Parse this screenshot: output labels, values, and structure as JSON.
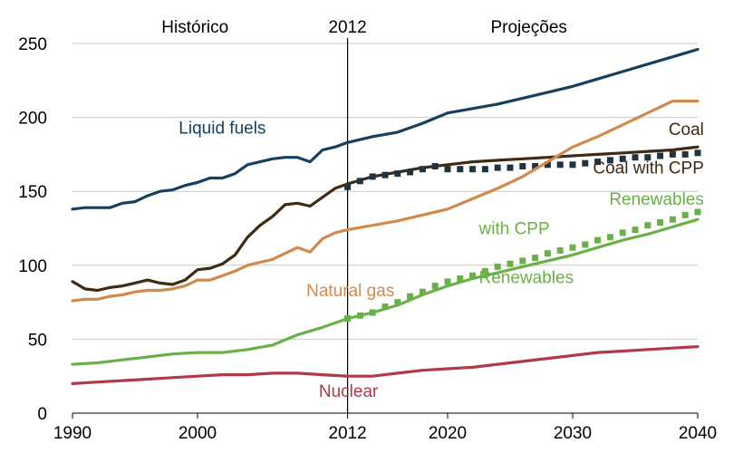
{
  "chart_data": {
    "type": "line",
    "title": "",
    "xlabel": "",
    "ylabel": "",
    "xlim": [
      1990,
      2040
    ],
    "ylim": [
      0,
      250
    ],
    "x_ticks": [
      1990,
      2000,
      2012,
      2020,
      2030,
      2040
    ],
    "y_ticks": [
      0,
      50,
      100,
      150,
      200,
      250
    ],
    "grid": "horizontal",
    "period_labels": {
      "historical": "Histórico",
      "split_year": "2012",
      "projections": "Projeções"
    },
    "split_x": 2012,
    "series": [
      {
        "name": "Liquid fuels",
        "style": "line",
        "color": "#17405e",
        "x": [
          1990,
          1991,
          1992,
          1993,
          1994,
          1995,
          1996,
          1997,
          1998,
          1999,
          2000,
          2001,
          2002,
          2003,
          2004,
          2005,
          2006,
          2007,
          2008,
          2009,
          2010,
          2011,
          2012,
          2014,
          2016,
          2018,
          2020,
          2022,
          2024,
          2026,
          2028,
          2030,
          2032,
          2034,
          2036,
          2038,
          2040
        ],
        "y": [
          138,
          139,
          139,
          139,
          142,
          143,
          147,
          150,
          151,
          154,
          156,
          159,
          159,
          162,
          168,
          170,
          172,
          173,
          173,
          170,
          178,
          180,
          183,
          187,
          190,
          196,
          203,
          206,
          209,
          213,
          217,
          221,
          226,
          231,
          236,
          241,
          246
        ]
      },
      {
        "name": "Coal",
        "style": "line",
        "color": "#3f2a14",
        "x": [
          1990,
          1991,
          1992,
          1993,
          1994,
          1995,
          1996,
          1997,
          1998,
          1999,
          2000,
          2001,
          2002,
          2003,
          2004,
          2005,
          2006,
          2007,
          2008,
          2009,
          2010,
          2011,
          2012,
          2014,
          2016,
          2018,
          2020,
          2022,
          2024,
          2026,
          2028,
          2030,
          2032,
          2034,
          2036,
          2038,
          2040
        ],
        "y": [
          89,
          84,
          83,
          85,
          86,
          88,
          90,
          88,
          87,
          90,
          97,
          98,
          101,
          107,
          119,
          127,
          133,
          141,
          142,
          140,
          146,
          152,
          155,
          160,
          163,
          166,
          168,
          170,
          171,
          172,
          173,
          174,
          175,
          176,
          177,
          178,
          180
        ]
      },
      {
        "name": "Coal with CPP",
        "style": "markers",
        "color": "#1f3440",
        "x": [
          2012,
          2013,
          2014,
          2015,
          2016,
          2017,
          2018,
          2019,
          2020,
          2021,
          2022,
          2023,
          2024,
          2025,
          2026,
          2027,
          2028,
          2029,
          2030,
          2031,
          2032,
          2033,
          2034,
          2035,
          2036,
          2037,
          2038,
          2039,
          2040
        ],
        "y": [
          153,
          157,
          160,
          161,
          162,
          163,
          165,
          167,
          165,
          165,
          165,
          165,
          166,
          166,
          167,
          167,
          168,
          168,
          168,
          169,
          170,
          171,
          172,
          173,
          173,
          174,
          175,
          175,
          176
        ]
      },
      {
        "name": "Natural gas",
        "style": "line",
        "color": "#d08a4c",
        "x": [
          1990,
          1991,
          1992,
          1993,
          1994,
          1995,
          1996,
          1997,
          1998,
          1999,
          2000,
          2001,
          2002,
          2003,
          2004,
          2005,
          2006,
          2007,
          2008,
          2009,
          2010,
          2011,
          2012,
          2014,
          2016,
          2018,
          2020,
          2022,
          2024,
          2026,
          2028,
          2030,
          2032,
          2034,
          2036,
          2038,
          2040
        ],
        "y": [
          76,
          77,
          77,
          79,
          80,
          82,
          83,
          83,
          84,
          86,
          90,
          90,
          93,
          96,
          100,
          102,
          104,
          108,
          112,
          109,
          118,
          122,
          124,
          127,
          130,
          134,
          138,
          145,
          152,
          160,
          170,
          180,
          187,
          195,
          203,
          211,
          211
        ]
      },
      {
        "name": "Renewables",
        "style": "line",
        "color": "#6ab048",
        "x": [
          1990,
          1992,
          1994,
          1996,
          1998,
          2000,
          2002,
          2004,
          2006,
          2008,
          2010,
          2012,
          2014,
          2016,
          2018,
          2020,
          2022,
          2024,
          2026,
          2028,
          2030,
          2032,
          2034,
          2036,
          2038,
          2040
        ],
        "y": [
          33,
          34,
          36,
          38,
          40,
          41,
          41,
          43,
          46,
          53,
          58,
          64,
          68,
          73,
          80,
          86,
          91,
          95,
          99,
          103,
          107,
          112,
          117,
          121,
          126,
          131
        ]
      },
      {
        "name": "Renewables with CPP",
        "style": "markers",
        "color": "#6ab048",
        "x": [
          2012,
          2013,
          2014,
          2015,
          2016,
          2017,
          2018,
          2019,
          2020,
          2021,
          2022,
          2023,
          2024,
          2025,
          2026,
          2027,
          2028,
          2029,
          2030,
          2031,
          2032,
          2033,
          2034,
          2035,
          2036,
          2037,
          2038,
          2039,
          2040
        ],
        "y": [
          64,
          66,
          68,
          72,
          75,
          79,
          82,
          86,
          89,
          91,
          93,
          96,
          99,
          101,
          103,
          105,
          108,
          110,
          112,
          114,
          117,
          119,
          122,
          124,
          127,
          129,
          131,
          134,
          136
        ]
      },
      {
        "name": "Nuclear",
        "style": "line",
        "color": "#b03a48",
        "x": [
          1990,
          1992,
          1994,
          1996,
          1998,
          2000,
          2002,
          2004,
          2006,
          2008,
          2010,
          2012,
          2014,
          2016,
          2018,
          2020,
          2022,
          2024,
          2026,
          2028,
          2030,
          2032,
          2034,
          2036,
          2038,
          2040
        ],
        "y": [
          20,
          21,
          22,
          23,
          24,
          25,
          26,
          26,
          27,
          27,
          26,
          25,
          25,
          27,
          29,
          30,
          31,
          33,
          35,
          37,
          39,
          41,
          42,
          43,
          44,
          45
        ]
      }
    ],
    "labels": [
      {
        "text": "Liquid fuels",
        "color": "#17405e",
        "at_x": 1998.5,
        "at_y": 189
      },
      {
        "text": "Coal",
        "color": "#3f2a14",
        "at_x": 2040.5,
        "at_y": 188
      },
      {
        "text": "Coal with CPP",
        "color": "#3f2a14",
        "at_x": 2040.5,
        "at_y": 162
      },
      {
        "text": "Renewables",
        "color": "#6ab048",
        "at_x": 2040.5,
        "at_y": 141
      },
      {
        "text": "with CPP",
        "color": "#6ab048",
        "at_x": 2022.5,
        "at_y": 121
      },
      {
        "text": "Natural gas",
        "color": "#d08a4c",
        "at_x": 2008.7,
        "at_y": 79
      },
      {
        "text": "Renewables",
        "color": "#6ab048",
        "at_x": 2022.5,
        "at_y": 88
      },
      {
        "text": "Nuclear",
        "color": "#b03a48",
        "at_x": 2009.7,
        "at_y": 11
      }
    ]
  }
}
